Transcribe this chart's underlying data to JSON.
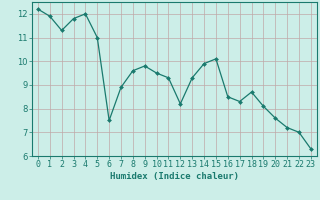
{
  "x": [
    0,
    1,
    2,
    3,
    4,
    5,
    6,
    7,
    8,
    9,
    10,
    11,
    12,
    13,
    14,
    15,
    16,
    17,
    18,
    19,
    20,
    21,
    22,
    23
  ],
  "y": [
    12.2,
    11.9,
    11.3,
    11.8,
    12.0,
    11.0,
    7.5,
    8.9,
    9.6,
    9.8,
    9.5,
    9.3,
    8.2,
    9.3,
    9.9,
    10.1,
    8.5,
    8.3,
    8.7,
    8.1,
    7.6,
    7.2,
    7.0,
    6.3
  ],
  "line_color": "#1a7a6e",
  "marker": "D",
  "marker_size": 2.0,
  "bg_color": "#cceee8",
  "grid_color": "#c0a8a8",
  "axis_color": "#1a7a6e",
  "xlabel": "Humidex (Indice chaleur)",
  "ylim": [
    6,
    12.5
  ],
  "xlim": [
    -0.5,
    23.5
  ],
  "yticks": [
    6,
    7,
    8,
    9,
    10,
    11,
    12
  ],
  "xticks": [
    0,
    1,
    2,
    3,
    4,
    5,
    6,
    7,
    8,
    9,
    10,
    11,
    12,
    13,
    14,
    15,
    16,
    17,
    18,
    19,
    20,
    21,
    22,
    23
  ],
  "label_fontsize": 6.5,
  "tick_fontsize": 6.0
}
